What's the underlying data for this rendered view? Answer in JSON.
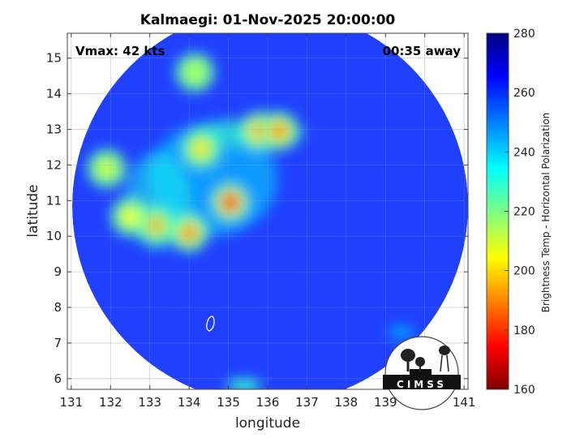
{
  "chart_data": {
    "type": "heatmap",
    "title": "Kalmaegi: 01-Nov-2025 20:00:00",
    "annotations": {
      "left": "Vmax: 42 kts",
      "right": "00:35 away"
    },
    "xlabel": "longitude",
    "ylabel": "latitude",
    "xlim": [
      130.9,
      141.1
    ],
    "ylim": [
      5.7,
      15.7
    ],
    "xticks": [
      131,
      132,
      133,
      134,
      135,
      136,
      137,
      138,
      139,
      140,
      141
    ],
    "yticks": [
      6,
      7,
      8,
      9,
      10,
      11,
      12,
      13,
      14,
      15
    ],
    "grid": true,
    "swath_edge": "circle",
    "colorbar": {
      "label": "Brightness Temp - Horizontal Polarization",
      "range": [
        160,
        280
      ],
      "ticks": [
        160,
        180,
        200,
        220,
        240,
        260,
        280
      ],
      "colormap": [
        "#800000",
        "#ff0000",
        "#ffff00",
        "#00ffff",
        "#0000ff",
        "#000080"
      ]
    },
    "background_value": 268,
    "features": [
      {
        "name": "inner core",
        "lon": 135.05,
        "lat": 10.95,
        "value": 172
      },
      {
        "name": "north convection",
        "lon": 135.8,
        "lat": 12.95,
        "value": 182
      },
      {
        "name": "north convection",
        "lon": 136.3,
        "lat": 12.95,
        "value": 184
      },
      {
        "name": "southwest band",
        "lon": 134.0,
        "lat": 10.1,
        "value": 185
      },
      {
        "name": "west band",
        "lon": 133.15,
        "lat": 10.3,
        "value": 192
      },
      {
        "name": "northwest band",
        "lon": 134.3,
        "lat": 12.45,
        "value": 200
      },
      {
        "name": "outer band",
        "lon": 131.9,
        "lat": 11.9,
        "value": 210
      },
      {
        "name": "outer band",
        "lon": 132.5,
        "lat": 10.55,
        "value": 205
      },
      {
        "name": "north band",
        "lon": 134.15,
        "lat": 14.6,
        "value": 215
      }
    ],
    "island_contour": {
      "lon": 134.55,
      "lat": 7.5
    }
  },
  "logo": {
    "text": "CIMSS"
  }
}
